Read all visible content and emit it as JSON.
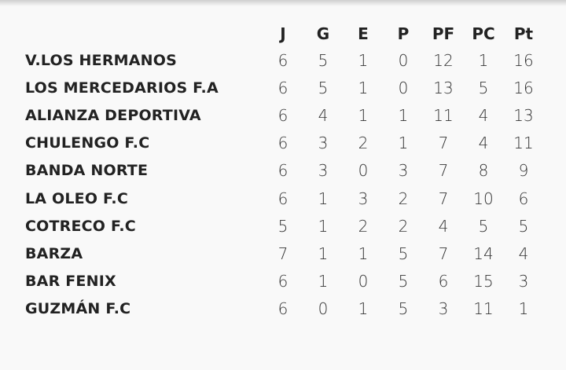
{
  "table": {
    "headers": [
      "J",
      "G",
      "E",
      "P",
      "PF",
      "PC",
      "Pt"
    ],
    "rows": [
      {
        "team": "V.LOS HERMANOS",
        "values": [
          "6",
          "5",
          "1",
          "0",
          "12",
          "1",
          "16"
        ]
      },
      {
        "team": "LOS MERCEDARIOS F.A",
        "values": [
          "6",
          "5",
          "1",
          "0",
          "13",
          "5",
          "16"
        ]
      },
      {
        "team": "ALIANZA DEPORTIVA",
        "values": [
          "6",
          "4",
          "1",
          "1",
          "11",
          "4",
          "13"
        ]
      },
      {
        "team": "CHULENGO F.C",
        "values": [
          "6",
          "3",
          "2",
          "1",
          "7",
          "4",
          "11"
        ]
      },
      {
        "team": "BANDA NORTE",
        "values": [
          "6",
          "3",
          "0",
          "3",
          "7",
          "8",
          "9"
        ]
      },
      {
        "team": "LA OLEO F.C",
        "values": [
          "6",
          "1",
          "3",
          "2",
          "7",
          "10",
          "6"
        ]
      },
      {
        "team": "COTRECO F.C",
        "values": [
          "5",
          "1",
          "2",
          "2",
          "4",
          "5",
          "5"
        ]
      },
      {
        "team": "BARZA",
        "values": [
          "7",
          "1",
          "1",
          "5",
          "7",
          "14",
          "4"
        ]
      },
      {
        "team": "BAR FENIX",
        "values": [
          "6",
          "1",
          "0",
          "5",
          "6",
          "15",
          "3"
        ]
      },
      {
        "team": "GUZMÁN F.C",
        "values": [
          "6",
          "0",
          "1",
          "5",
          "3",
          "11",
          "1"
        ]
      }
    ]
  }
}
